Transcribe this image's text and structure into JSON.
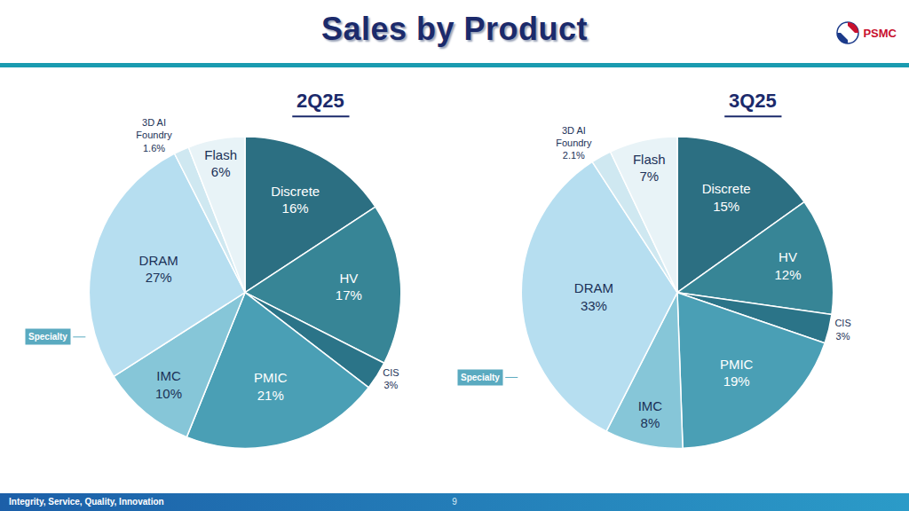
{
  "header": {
    "title": "Sales by Product",
    "logo": "PSMC"
  },
  "footer": {
    "motto": "Integrity, Service, Quality, Innovation",
    "page": 9
  },
  "chart_data": [
    {
      "type": "pie",
      "title": "2Q25",
      "annotation": "Specialty",
      "data_labels": true,
      "categories": [
        "Discrete",
        "HV",
        "CIS",
        "PMIC",
        "IMC",
        "DRAM",
        "3D AI Foundry",
        "Flash"
      ],
      "values": [
        16,
        17,
        3,
        21,
        10,
        27,
        1.6,
        6
      ],
      "value_labels": [
        "16%",
        "17%",
        "3%",
        "21%",
        "10%",
        "27%",
        "1.6%",
        "6%"
      ],
      "colors": [
        "#2c6f82",
        "#378596",
        "#2b7488",
        "#4a9fb5",
        "#86c6d8",
        "#b6def0",
        "#cfe8f1",
        "#e8f3f7"
      ]
    },
    {
      "type": "pie",
      "title": "3Q25",
      "annotation": "Specialty",
      "data_labels": true,
      "categories": [
        "Discrete",
        "HV",
        "CIS",
        "PMIC",
        "IMC",
        "DRAM",
        "3D AI Foundry",
        "Flash"
      ],
      "values": [
        15,
        12,
        3,
        19,
        8,
        33,
        2.1,
        7
      ],
      "value_labels": [
        "15%",
        "12%",
        "3%",
        "19%",
        "8%",
        "33%",
        "2.1%",
        "7%"
      ],
      "colors": [
        "#2c6f82",
        "#378596",
        "#2b7488",
        "#4a9fb5",
        "#86c6d8",
        "#b6def0",
        "#cfe8f1",
        "#e8f3f7"
      ]
    }
  ]
}
